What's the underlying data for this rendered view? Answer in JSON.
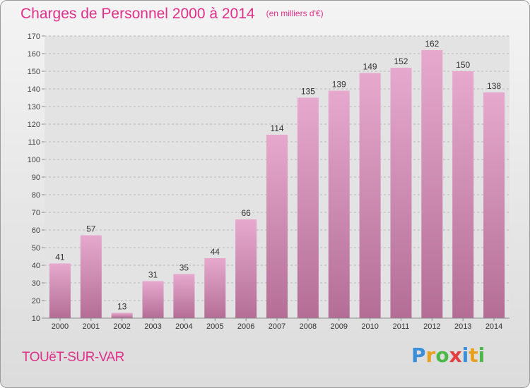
{
  "header": {
    "title": "Charges de Personnel 2000 à 2014",
    "subtitle": "(en milliers d'€)"
  },
  "footer": {
    "place": "TOUëT-SUR-VAR",
    "logo_letters": [
      "P",
      "r",
      "o",
      "x",
      "i",
      "t",
      "i"
    ],
    "logo_colors": [
      "#3a8fd8",
      "#e8a020",
      "#4cb848",
      "#e04040",
      "#3a8fd8",
      "#e8a020",
      "#4cb848"
    ]
  },
  "colors": {
    "title": "#e0308a",
    "bar_light": "#e6a9cd",
    "bar_dark": "#b46e96",
    "grid": "#b9b9b9",
    "axis": "#888888",
    "plot_bg": "#e3e3e3"
  },
  "chart_data": {
    "type": "bar",
    "title": "Charges de Personnel 2000 à 2014",
    "xlabel": "",
    "ylabel": "",
    "categories": [
      "2000",
      "2001",
      "2002",
      "2003",
      "2004",
      "2005",
      "2006",
      "2007",
      "2008",
      "2009",
      "2010",
      "2011",
      "2012",
      "2013",
      "2014"
    ],
    "values": [
      41,
      57,
      13,
      31,
      35,
      44,
      66,
      114,
      135,
      139,
      149,
      152,
      162,
      150,
      138
    ],
    "ylim": [
      10,
      170
    ],
    "yticks": [
      10,
      20,
      30,
      40,
      50,
      60,
      70,
      80,
      90,
      100,
      110,
      120,
      130,
      140,
      150,
      160,
      170
    ],
    "grid": true,
    "data_labels": true
  }
}
